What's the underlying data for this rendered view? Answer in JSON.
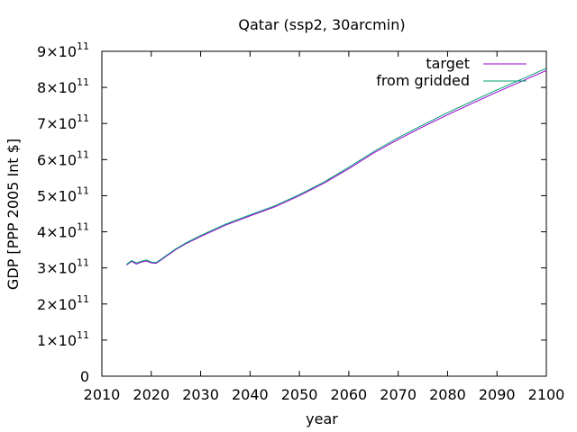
{
  "chart_data": {
    "type": "line",
    "title": "Qatar (ssp2, 30arcmin)",
    "xlabel": "year",
    "ylabel": "GDP [PPP 2005 Int $]",
    "xlim": [
      2010,
      2100
    ],
    "ylim": [
      0,
      900000000000
    ],
    "x_ticks": [
      "2010",
      "2020",
      "2030",
      "2040",
      "2050",
      "2060",
      "2070",
      "2080",
      "2090",
      "2100"
    ],
    "y_ticks": [
      {
        "value": 0,
        "mantissa": "0",
        "exponent": ""
      },
      {
        "value": 100000000000,
        "mantissa": "1×10",
        "exponent": "11"
      },
      {
        "value": 200000000000,
        "mantissa": "2×10",
        "exponent": "11"
      },
      {
        "value": 300000000000,
        "mantissa": "3×10",
        "exponent": "11"
      },
      {
        "value": 400000000000,
        "mantissa": "4×10",
        "exponent": "11"
      },
      {
        "value": 500000000000,
        "mantissa": "5×10",
        "exponent": "11"
      },
      {
        "value": 600000000000,
        "mantissa": "6×10",
        "exponent": "11"
      },
      {
        "value": 700000000000,
        "mantissa": "7×10",
        "exponent": "11"
      },
      {
        "value": 800000000000,
        "mantissa": "8×10",
        "exponent": "11"
      },
      {
        "value": 900000000000,
        "mantissa": "9×10",
        "exponent": "11"
      }
    ],
    "grid": false,
    "legend_position": "top-right",
    "series": [
      {
        "name": "target",
        "color": "#9400d3",
        "x": [
          2015,
          2016,
          2017,
          2018,
          2019,
          2020,
          2021,
          2022,
          2023,
          2025,
          2027,
          2030,
          2035,
          2040,
          2045,
          2050,
          2055,
          2060,
          2065,
          2070,
          2075,
          2080,
          2085,
          2090,
          2095,
          2100
        ],
        "y": [
          308000000000,
          318000000000,
          311000000000,
          316000000000,
          319000000000,
          314000000000,
          313000000000,
          322000000000,
          332000000000,
          351000000000,
          367000000000,
          387000000000,
          418000000000,
          444000000000,
          469000000000,
          500000000000,
          535000000000,
          575000000000,
          618000000000,
          656000000000,
          691000000000,
          724000000000,
          756000000000,
          787000000000,
          817000000000,
          847000000000
        ]
      },
      {
        "name": "from gridded",
        "color": "#009e73",
        "x": [
          2015,
          2016,
          2017,
          2018,
          2019,
          2020,
          2021,
          2022,
          2023,
          2025,
          2027,
          2030,
          2035,
          2040,
          2045,
          2050,
          2055,
          2060,
          2065,
          2070,
          2075,
          2080,
          2085,
          2090,
          2095,
          2100
        ],
        "y": [
          310000000000,
          320000000000,
          314000000000,
          318000000000,
          322000000000,
          316000000000,
          315000000000,
          324000000000,
          334000000000,
          353000000000,
          369000000000,
          390000000000,
          421000000000,
          447000000000,
          472000000000,
          503000000000,
          538000000000,
          579000000000,
          622000000000,
          661000000000,
          696000000000,
          730000000000,
          762000000000,
          793000000000,
          823000000000,
          853000000000
        ]
      }
    ]
  }
}
